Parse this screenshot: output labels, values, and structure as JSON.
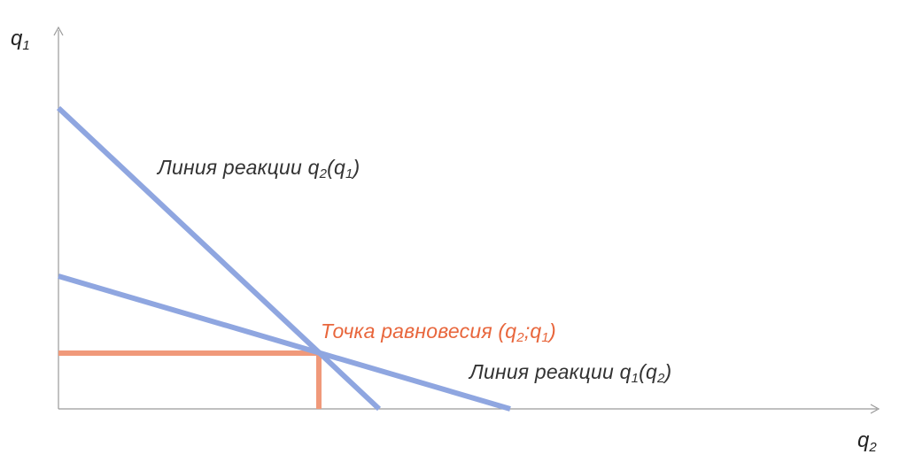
{
  "axes": {
    "y_label": {
      "main": "q",
      "sub": "1"
    },
    "x_label": {
      "main": "q",
      "sub": "2"
    }
  },
  "labels": {
    "reaction_q2": {
      "prefix": "Линия реакции q",
      "sub1": "2",
      "mid": "(q",
      "sub2": "1",
      "suffix": ")"
    },
    "equilibrium": {
      "prefix": "Точка равновесия (q",
      "sub1": "2",
      "mid": ";q",
      "sub2": "1",
      "suffix": ")"
    },
    "reaction_q1": {
      "prefix": "Линия реакции q",
      "sub1": "1",
      "mid": "(q",
      "sub2": "2",
      "suffix": ")"
    }
  },
  "colors": {
    "reaction_line": "#8fa6e0",
    "equilibrium": "#f0997a",
    "equilibrium_text": "#e8663c",
    "axis": "#9a9a9a"
  }
}
